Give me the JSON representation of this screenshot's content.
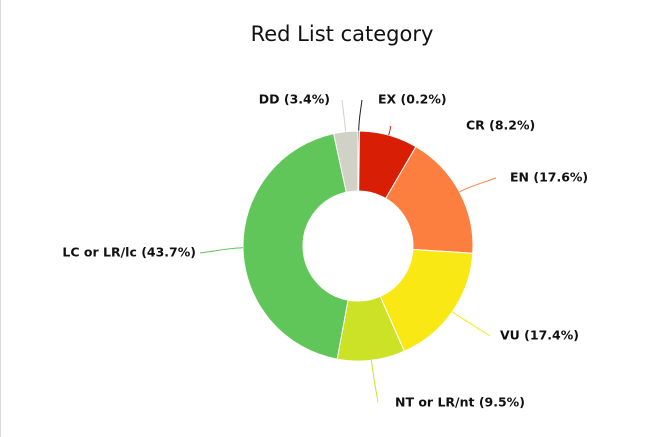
{
  "chart_data": {
    "type": "pie",
    "donut": true,
    "title": "Red List category",
    "slices": [
      {
        "label": "EX (0.2%)",
        "value": 0.2,
        "color": "#222222"
      },
      {
        "label": "CR (8.2%)",
        "value": 8.2,
        "color": "#d81e05"
      },
      {
        "label": "EN (17.6%)",
        "value": 17.6,
        "color": "#fc7f3f"
      },
      {
        "label": "VU (17.4%)",
        "value": 17.4,
        "color": "#f9e814"
      },
      {
        "label": "NT or LR/nt (9.5%)",
        "value": 9.5,
        "color": "#cce226"
      },
      {
        "label": "LC or LR/lc (43.7%)",
        "value": 43.7,
        "color": "#60c659"
      },
      {
        "label": "DD (3.4%)",
        "value": 3.4,
        "color": "#d1d1c6"
      }
    ],
    "legend": "none"
  }
}
